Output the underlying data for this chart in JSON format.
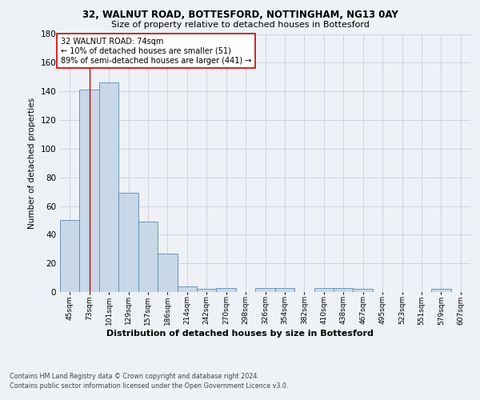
{
  "title_line1": "32, WALNUT ROAD, BOTTESFORD, NOTTINGHAM, NG13 0AY",
  "title_line2": "Size of property relative to detached houses in Bottesford",
  "xlabel": "Distribution of detached houses by size in Bottesford",
  "ylabel": "Number of detached properties",
  "bar_color": "#c8d8e8",
  "bar_edge_color": "#5a8ab0",
  "bin_labels": [
    "45sqm",
    "73sqm",
    "101sqm",
    "129sqm",
    "157sqm",
    "186sqm",
    "214sqm",
    "242sqm",
    "270sqm",
    "298sqm",
    "326sqm",
    "354sqm",
    "382sqm",
    "410sqm",
    "438sqm",
    "467sqm",
    "495sqm",
    "523sqm",
    "551sqm",
    "579sqm",
    "607sqm"
  ],
  "bar_values": [
    50,
    141,
    146,
    69,
    49,
    27,
    4,
    2,
    3,
    0,
    3,
    3,
    0,
    3,
    3,
    2,
    0,
    0,
    0,
    2,
    0
  ],
  "ylim": [
    0,
    180
  ],
  "yticks": [
    0,
    20,
    40,
    60,
    80,
    100,
    120,
    140,
    160,
    180
  ],
  "vline_x": 1.0,
  "vline_color": "#cc0000",
  "annotation_text": "32 WALNUT ROAD: 74sqm\n← 10% of detached houses are smaller (51)\n89% of semi-detached houses are larger (441) →",
  "footer_line1": "Contains HM Land Registry data © Crown copyright and database right 2024.",
  "footer_line2": "Contains public sector information licensed under the Open Government Licence v3.0.",
  "background_color": "#eef2f7",
  "plot_bg_color": "#eef2f7",
  "grid_color": "#c5cdd8"
}
